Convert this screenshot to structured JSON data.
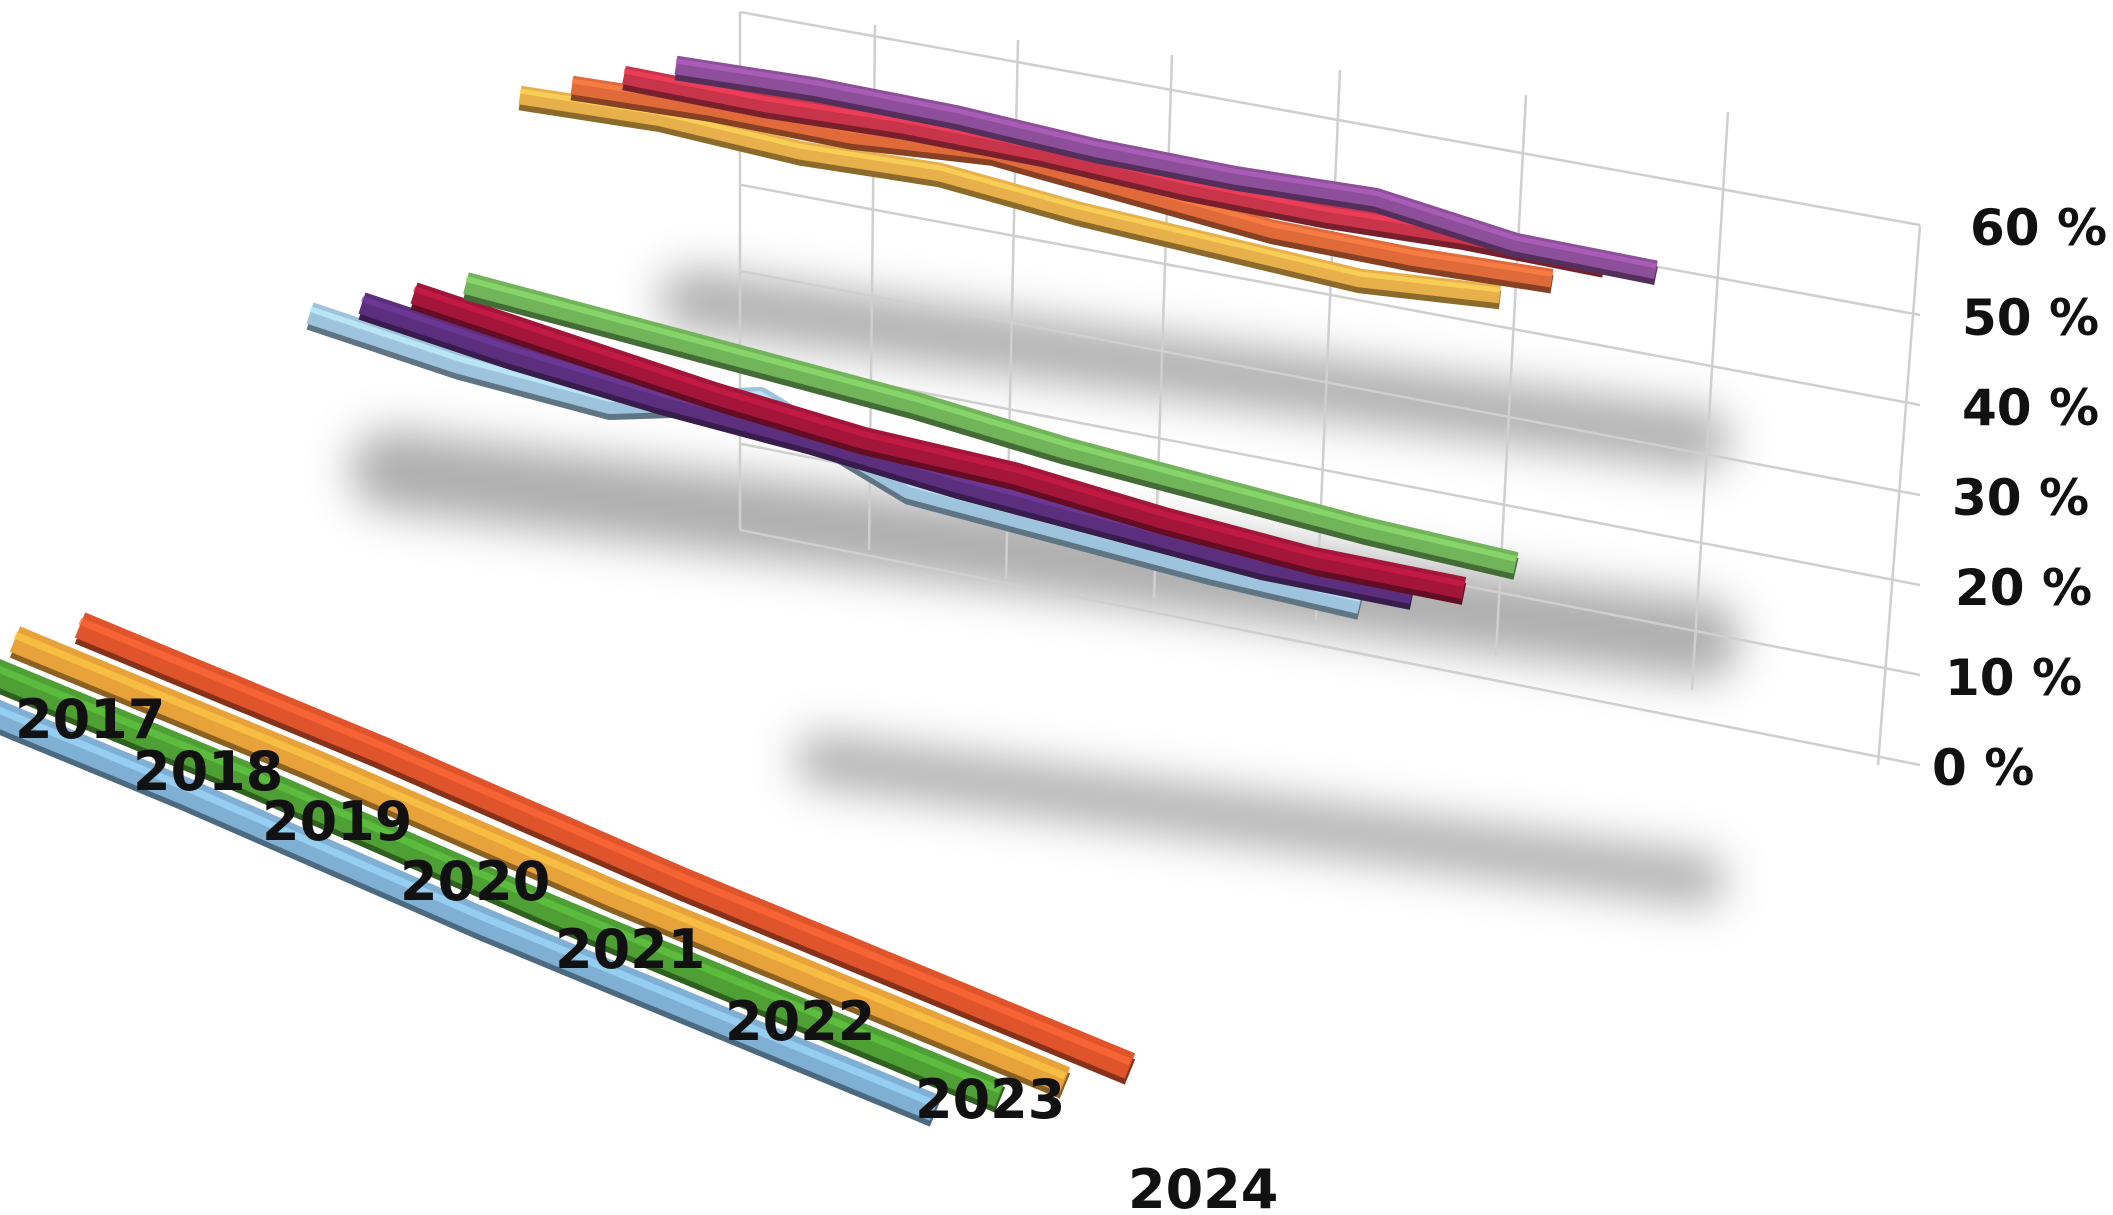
{
  "chart_data": {
    "type": "line",
    "title": "",
    "xlabel": "",
    "ylabel": "",
    "categories": [
      "2017",
      "2018",
      "2019",
      "2020",
      "2021",
      "2022",
      "2023",
      "2024"
    ],
    "y_ticks": [
      "0 %",
      "10 %",
      "20 %",
      "30 %",
      "40 %",
      "50 %",
      "60 %"
    ],
    "ylim": [
      0,
      60
    ],
    "grid": true,
    "legend": "none",
    "style": "3d-ribbon",
    "series": [
      {
        "color": "#e8b04a",
        "values": [
          61,
          60,
          57,
          56,
          52,
          49,
          46,
          46
        ],
        "group": "back"
      },
      {
        "color": "#e06a3a",
        "values": [
          59,
          58,
          56,
          56,
          52,
          48,
          46,
          45
        ],
        "group": "back"
      },
      {
        "color": "#c8344a",
        "values": [
          57,
          55,
          54,
          52,
          49,
          47,
          46,
          44
        ],
        "group": "back"
      },
      {
        "color": "#8e4f9a",
        "values": [
          46,
          45,
          43,
          40,
          38,
          37,
          32,
          30
        ],
        "group": "back"
      },
      {
        "color": "#9ec3dc",
        "values": [
          38,
          33,
          30,
          36,
          23,
          20,
          17,
          15
        ],
        "group": "middle"
      },
      {
        "color": "#5b2f7e",
        "values": [
          38,
          33,
          29,
          26,
          22,
          19,
          16,
          15
        ],
        "group": "middle"
      },
      {
        "color": "#a3163a",
        "values": [
          38,
          33,
          28,
          24,
          22,
          18,
          15,
          14
        ],
        "group": "middle"
      },
      {
        "color": "#72b45a",
        "values": [
          33,
          30,
          27,
          24,
          20,
          17,
          14,
          12
        ],
        "group": "middle"
      },
      {
        "color": "#e0542c",
        "values": [
          19,
          17,
          15,
          12,
          9,
          7,
          5,
          3
        ],
        "group": "front"
      },
      {
        "color": "#e8a23a",
        "values": [
          19,
          17,
          15,
          12,
          9,
          7,
          5,
          3
        ],
        "group": "front"
      },
      {
        "color": "#4fa034",
        "values": [
          19,
          17,
          15,
          12,
          9,
          7,
          5,
          3
        ],
        "group": "front"
      },
      {
        "color": "#7fb0d4",
        "values": [
          19,
          17,
          15,
          12,
          9,
          7,
          5,
          3
        ],
        "group": "front"
      }
    ]
  }
}
